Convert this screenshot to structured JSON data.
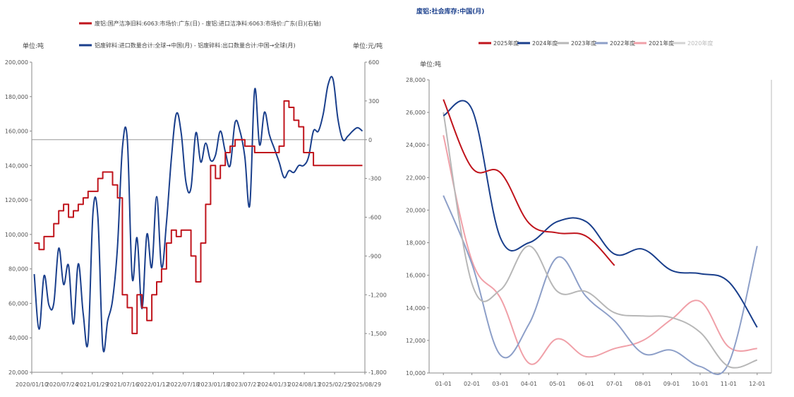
{
  "chart_data": [
    {
      "type": "line",
      "title": "",
      "legend": [
        {
          "name": "废铝:国产洁净旧料:6063:市场价:广东(日) - 废铝:进口洁净料:6063:市场价:广东(日)(右轴)",
          "color": "#c0141c"
        },
        {
          "name": "铝废碎料:进口数量合计:全球→中国(月) - 铝废碎料:出口数量合计:中国→全球(月)",
          "color": "#1a3f8c"
        }
      ],
      "legend_position": "top",
      "left_axis": {
        "unit_label": "单位:吨",
        "ylim": [
          20000,
          200000
        ],
        "ticks": [
          "20,000",
          "40,000",
          "60,000",
          "80,000",
          "100,000",
          "120,000",
          "140,000",
          "160,000",
          "180,000",
          "200,000"
        ]
      },
      "right_axis": {
        "unit_label": "单位:元/吨",
        "ylim": [
          -1800,
          600
        ],
        "ticks": [
          "-1,800",
          "-1,500",
          "-1,200",
          "-900",
          "-600",
          "-300",
          "0",
          "300",
          "600"
        ]
      },
      "x_ticks": [
        "2020/01/10",
        "2020/07/24",
        "2021/01/29",
        "2021/07/16",
        "2022/01/12",
        "2022/07/18",
        "2023/01/18",
        "2023/07/27",
        "2024/01/31",
        "2024/08/13",
        "2025/02/25",
        "2025/08/29"
      ],
      "series": [
        {
          "name": "铝废碎料:进口数量合计:全球→中国(月) - 铝废碎料:出口数量合计:中国→全球(月)",
          "axis": "left",
          "color": "#1a3f8c",
          "x": [
            "2020/01",
            "2020/02",
            "2020/03",
            "2020/04",
            "2020/05",
            "2020/06",
            "2020/07",
            "2020/08",
            "2020/09",
            "2020/10",
            "2020/11",
            "2020/12",
            "2021/01",
            "2021/02",
            "2021/03",
            "2021/04",
            "2021/05",
            "2021/06",
            "2021/07",
            "2021/08",
            "2021/09",
            "2021/10",
            "2021/11",
            "2021/12",
            "2022/01",
            "2022/02",
            "2022/03",
            "2022/04",
            "2022/05",
            "2022/06",
            "2022/07",
            "2022/08",
            "2022/09",
            "2022/10",
            "2022/11",
            "2022/12",
            "2023/01",
            "2023/02",
            "2023/03",
            "2023/04",
            "2023/05",
            "2023/06",
            "2023/07",
            "2023/08",
            "2023/09",
            "2023/10",
            "2023/11",
            "2023/12",
            "2024/01",
            "2024/02",
            "2024/03",
            "2024/04",
            "2024/05",
            "2024/06",
            "2024/07",
            "2024/08",
            "2024/09",
            "2024/10",
            "2024/11",
            "2024/12",
            "2025/01",
            "2025/02",
            "2025/03",
            "2025/04",
            "2025/05",
            "2025/06",
            "2025/07",
            "2025/08"
          ],
          "values": [
            77000,
            45000,
            76000,
            59000,
            60000,
            92000,
            71000,
            82000,
            48000,
            83000,
            54000,
            38000,
            113000,
            110000,
            35000,
            50000,
            62000,
            93000,
            150000,
            155000,
            75000,
            98000,
            57000,
            100000,
            81000,
            122000,
            81000,
            107000,
            144000,
            170000,
            159000,
            130000,
            127000,
            159000,
            142000,
            153000,
            143000,
            146000,
            160000,
            148000,
            140000,
            165000,
            160000,
            145000,
            117000,
            184000,
            152000,
            171000,
            158000,
            150000,
            142000,
            133000,
            137000,
            136000,
            140000,
            140000,
            145000,
            160000,
            160000,
            170000,
            187000,
            190000,
            167000,
            155000,
            157000,
            160000,
            162000,
            160000
          ]
        },
        {
          "name": "废铝:国产洁净旧料:6063:市场价:广东(日) - 废铝:进口洁净料:6063:市场价:广东(日)(右轴)",
          "axis": "right",
          "color": "#c0141c",
          "x": [
            "2020/01",
            "2020/02",
            "2020/03",
            "2020/04",
            "2020/05",
            "2020/06",
            "2020/07",
            "2020/08",
            "2020/09",
            "2020/10",
            "2020/11",
            "2020/12",
            "2021/01",
            "2021/02",
            "2021/03",
            "2021/04",
            "2021/05",
            "2021/06",
            "2021/07",
            "2021/08",
            "2021/09",
            "2021/10",
            "2021/11",
            "2021/12",
            "2022/01",
            "2022/02",
            "2022/03",
            "2022/04",
            "2022/05",
            "2022/06",
            "2022/07",
            "2022/08",
            "2022/09",
            "2022/10",
            "2022/11",
            "2022/12",
            "2023/01",
            "2023/02",
            "2023/03",
            "2023/04",
            "2023/05",
            "2023/06",
            "2023/07",
            "2023/08",
            "2023/09",
            "2023/10",
            "2023/11",
            "2023/12",
            "2024/01",
            "2024/02",
            "2024/03",
            "2024/04",
            "2024/05",
            "2024/06",
            "2024/07",
            "2024/08",
            "2024/09",
            "2024/10",
            "2024/11",
            "2024/12",
            "2025/01",
            "2025/02",
            "2025/03",
            "2025/04",
            "2025/05",
            "2025/06",
            "2025/07",
            "2025/08"
          ],
          "values": [
            -800,
            -850,
            -750,
            -750,
            -650,
            -550,
            -500,
            -600,
            -550,
            -500,
            -450,
            -400,
            -400,
            -300,
            -250,
            -250,
            -350,
            -450,
            -1200,
            -1300,
            -1500,
            -1200,
            -1300,
            -1400,
            -1200,
            -1100,
            -1000,
            -800,
            -700,
            -750,
            -700,
            -700,
            -900,
            -1100,
            -800,
            -500,
            -200,
            -300,
            -200,
            -100,
            -50,
            0,
            0,
            -50,
            -50,
            -100,
            -100,
            -100,
            -100,
            -100,
            -50,
            300,
            250,
            150,
            100,
            -100,
            -100,
            -200,
            -200,
            -200,
            -200,
            -200,
            -200,
            -200,
            -200,
            -200,
            -200,
            -200
          ]
        }
      ]
    },
    {
      "type": "line",
      "title": "废铝:社会库存:中国(月)",
      "unit_label": "单位:吨",
      "legend_position": "top",
      "categories": [
        "01-01",
        "02-01",
        "03-01",
        "04-01",
        "05-01",
        "06-01",
        "07-01",
        "08-01",
        "09-01",
        "10-01",
        "11-01",
        "12-01"
      ],
      "y_ticks": [
        "10,000",
        "12,000",
        "14,000",
        "16,000",
        "18,000",
        "20,000",
        "22,000",
        "24,000",
        "26,000",
        "28,000"
      ],
      "ylim": [
        10000,
        28000
      ],
      "series": [
        {
          "name": "2025年度",
          "color": "#c0141c",
          "values": [
            26800,
            22600,
            22300,
            19200,
            18600,
            18400,
            16600,
            null,
            null,
            null,
            null,
            null
          ]
        },
        {
          "name": "2024年度",
          "color": "#1a3f8c",
          "values": [
            25800,
            26200,
            18300,
            18000,
            19300,
            19300,
            17300,
            17600,
            16300,
            16100,
            15600,
            12800
          ]
        },
        {
          "name": "2023年度",
          "color": "#b7b7b7",
          "values": [
            26000,
            15500,
            15100,
            17800,
            15000,
            15000,
            13700,
            13500,
            13400,
            12500,
            10400,
            10800
          ]
        },
        {
          "name": "2022年度",
          "color": "#8d9fc8",
          "values": [
            20900,
            16700,
            11100,
            13000,
            17100,
            14700,
            13200,
            11200,
            11400,
            10400,
            10600,
            17800
          ]
        },
        {
          "name": "2021年度",
          "color": "#f0a0a8",
          "values": [
            24600,
            16900,
            14600,
            10600,
            12100,
            11000,
            11500,
            12000,
            13300,
            14400,
            11600,
            11500
          ]
        },
        {
          "name": "2020年度",
          "color": "#d3d3d3",
          "values": [
            null,
            null,
            null,
            null,
            null,
            null,
            null,
            null,
            null,
            null,
            null,
            null
          ]
        }
      ]
    }
  ]
}
